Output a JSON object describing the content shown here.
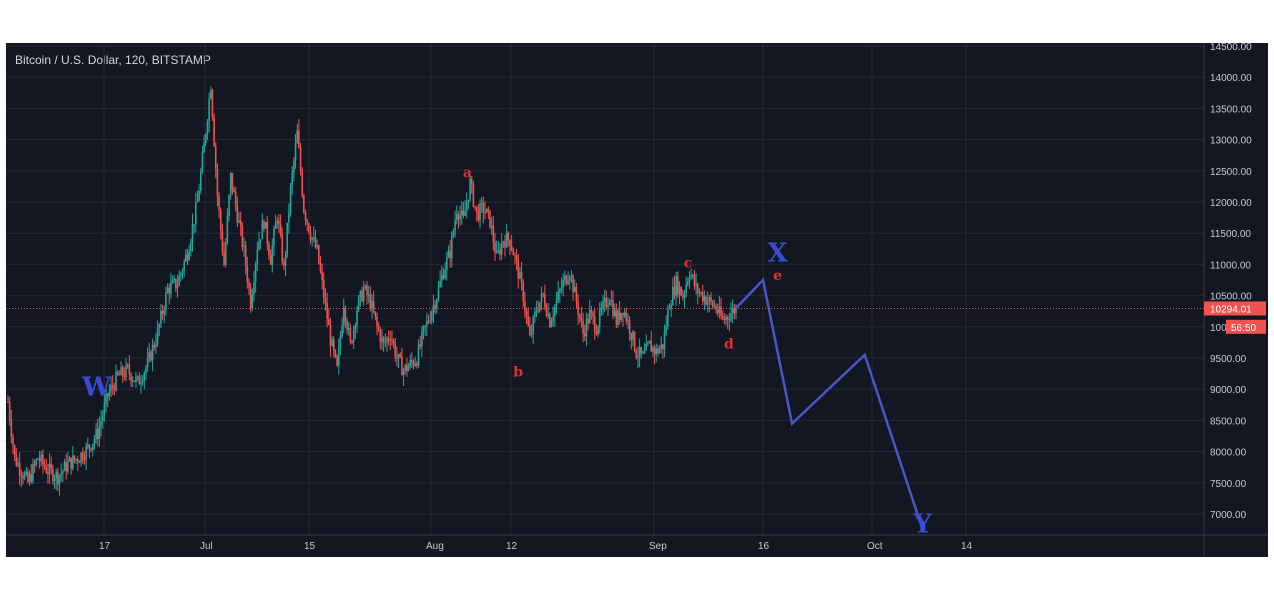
{
  "chart_data": {
    "type": "candlestick",
    "title": "Bitcoin / U.S. Dollar, 120, BITSTAMP",
    "ylim": [
      6600,
      14500
    ],
    "y_ticks": [
      "14500.00",
      "14000.00",
      "13500.00",
      "13000.00",
      "12500.00",
      "12000.00",
      "11500.00",
      "11000.00",
      "10500.00",
      "10000.00",
      "9500.00",
      "9000.00",
      "8500.00",
      "8000.00",
      "7500.00",
      "7000.00"
    ],
    "x_ticks": [
      "17",
      "Jul",
      "15",
      "Aug",
      "12",
      "Sep",
      "16",
      "Oct",
      "14"
    ],
    "price_line": {
      "value": 10294.01,
      "label": "10294.01",
      "color": "#ef5350"
    },
    "countdown": {
      "label": "56:50",
      "covered_tick": "10000.00"
    },
    "price_path": [
      [
        0,
        8800
      ],
      [
        2,
        7900
      ],
      [
        4,
        7700
      ],
      [
        6,
        7500
      ],
      [
        9,
        7900
      ],
      [
        12,
        7700
      ],
      [
        15,
        7600
      ],
      [
        18,
        7800
      ],
      [
        21,
        7900
      ],
      [
        24,
        8050
      ],
      [
        27,
        8300
      ],
      [
        30,
        8900
      ],
      [
        33,
        9200
      ],
      [
        36,
        9300
      ],
      [
        39,
        9100
      ],
      [
        42,
        9400
      ],
      [
        45,
        9900
      ],
      [
        48,
        10600
      ],
      [
        51,
        10700
      ],
      [
        54,
        11200
      ],
      [
        57,
        12000
      ],
      [
        59,
        12900
      ],
      [
        61,
        13900
      ],
      [
        63,
        12100
      ],
      [
        65,
        11000
      ],
      [
        67,
        12400
      ],
      [
        69,
        11800
      ],
      [
        71,
        11200
      ],
      [
        73,
        10400
      ],
      [
        75,
        11300
      ],
      [
        77,
        11700
      ],
      [
        79,
        11100
      ],
      [
        81,
        11800
      ],
      [
        83,
        10900
      ],
      [
        85,
        12200
      ],
      [
        87,
        13100
      ],
      [
        89,
        11900
      ],
      [
        91,
        11500
      ],
      [
        93,
        11200
      ],
      [
        95,
        10500
      ],
      [
        97,
        9800
      ],
      [
        99,
        9300
      ],
      [
        101,
        10400
      ],
      [
        103,
        9700
      ],
      [
        105,
        10300
      ],
      [
        107,
        10600
      ],
      [
        109,
        10400
      ],
      [
        111,
        10000
      ],
      [
        113,
        9700
      ],
      [
        115,
        9900
      ],
      [
        117,
        9500
      ],
      [
        119,
        9300
      ],
      [
        121,
        9400
      ],
      [
        123,
        9500
      ],
      [
        125,
        9900
      ],
      [
        127,
        10200
      ],
      [
        129,
        10500
      ],
      [
        131,
        10900
      ],
      [
        133,
        11200
      ],
      [
        135,
        11900
      ],
      [
        137,
        11700
      ],
      [
        139,
        12300
      ],
      [
        141,
        11800
      ],
      [
        143,
        11900
      ],
      [
        145,
        11700
      ],
      [
        147,
        11100
      ],
      [
        149,
        11400
      ],
      [
        151,
        11400
      ],
      [
        153,
        11000
      ],
      [
        155,
        10500
      ],
      [
        157,
        9800
      ],
      [
        159,
        10300
      ],
      [
        161,
        10500
      ],
      [
        163,
        10100
      ],
      [
        165,
        10400
      ],
      [
        167,
        10700
      ],
      [
        169,
        10900
      ],
      [
        171,
        10400
      ],
      [
        173,
        9900
      ],
      [
        175,
        10200
      ],
      [
        177,
        10000
      ],
      [
        179,
        10300
      ],
      [
        181,
        10500
      ],
      [
        183,
        10100
      ],
      [
        185,
        10300
      ],
      [
        187,
        10000
      ],
      [
        189,
        9600
      ],
      [
        191,
        9500
      ],
      [
        193,
        9700
      ],
      [
        195,
        9600
      ],
      [
        197,
        9700
      ],
      [
        199,
        10400
      ],
      [
        201,
        10700
      ],
      [
        203,
        10500
      ],
      [
        205,
        10900
      ],
      [
        207,
        10600
      ],
      [
        209,
        10500
      ],
      [
        211,
        10400
      ],
      [
        213,
        10300
      ],
      [
        215,
        10100
      ],
      [
        217,
        10200
      ],
      [
        219,
        10300
      ]
    ],
    "projection": {
      "start_index": 219,
      "points": [
        {
          "date": "Sep 17",
          "value": 10750
        },
        {
          "date": "Sep 21",
          "value": 8450
        },
        {
          "date": "Oct 1",
          "value": 9550
        },
        {
          "date": "Oct 9",
          "value": 6750
        }
      ],
      "color": "#4a55c8"
    },
    "annotations": [
      {
        "text": "W",
        "style": "blue",
        "date": "Jun 16",
        "value": 8900
      },
      {
        "text": "a",
        "style": "red",
        "date": "Aug 6",
        "value": 12400
      },
      {
        "text": "b",
        "style": "red",
        "date": "Aug 13",
        "value": 9200
      },
      {
        "text": "c",
        "style": "red",
        "date": "Sep 6",
        "value": 10950
      },
      {
        "text": "d",
        "style": "red",
        "date": "Sep 12",
        "value": 9650
      },
      {
        "text": "X",
        "style": "blue",
        "date": "Sep 19",
        "value": 11050
      },
      {
        "text": "e",
        "style": "red",
        "date": "Sep 19",
        "value": 10750
      },
      {
        "text": "Y",
        "style": "blue",
        "date": "Oct 9",
        "value": 6700
      }
    ],
    "grid": true,
    "colors": {
      "up": "#26a69a",
      "down": "#ef5350",
      "grid": "#242832",
      "background": "#131722"
    }
  }
}
